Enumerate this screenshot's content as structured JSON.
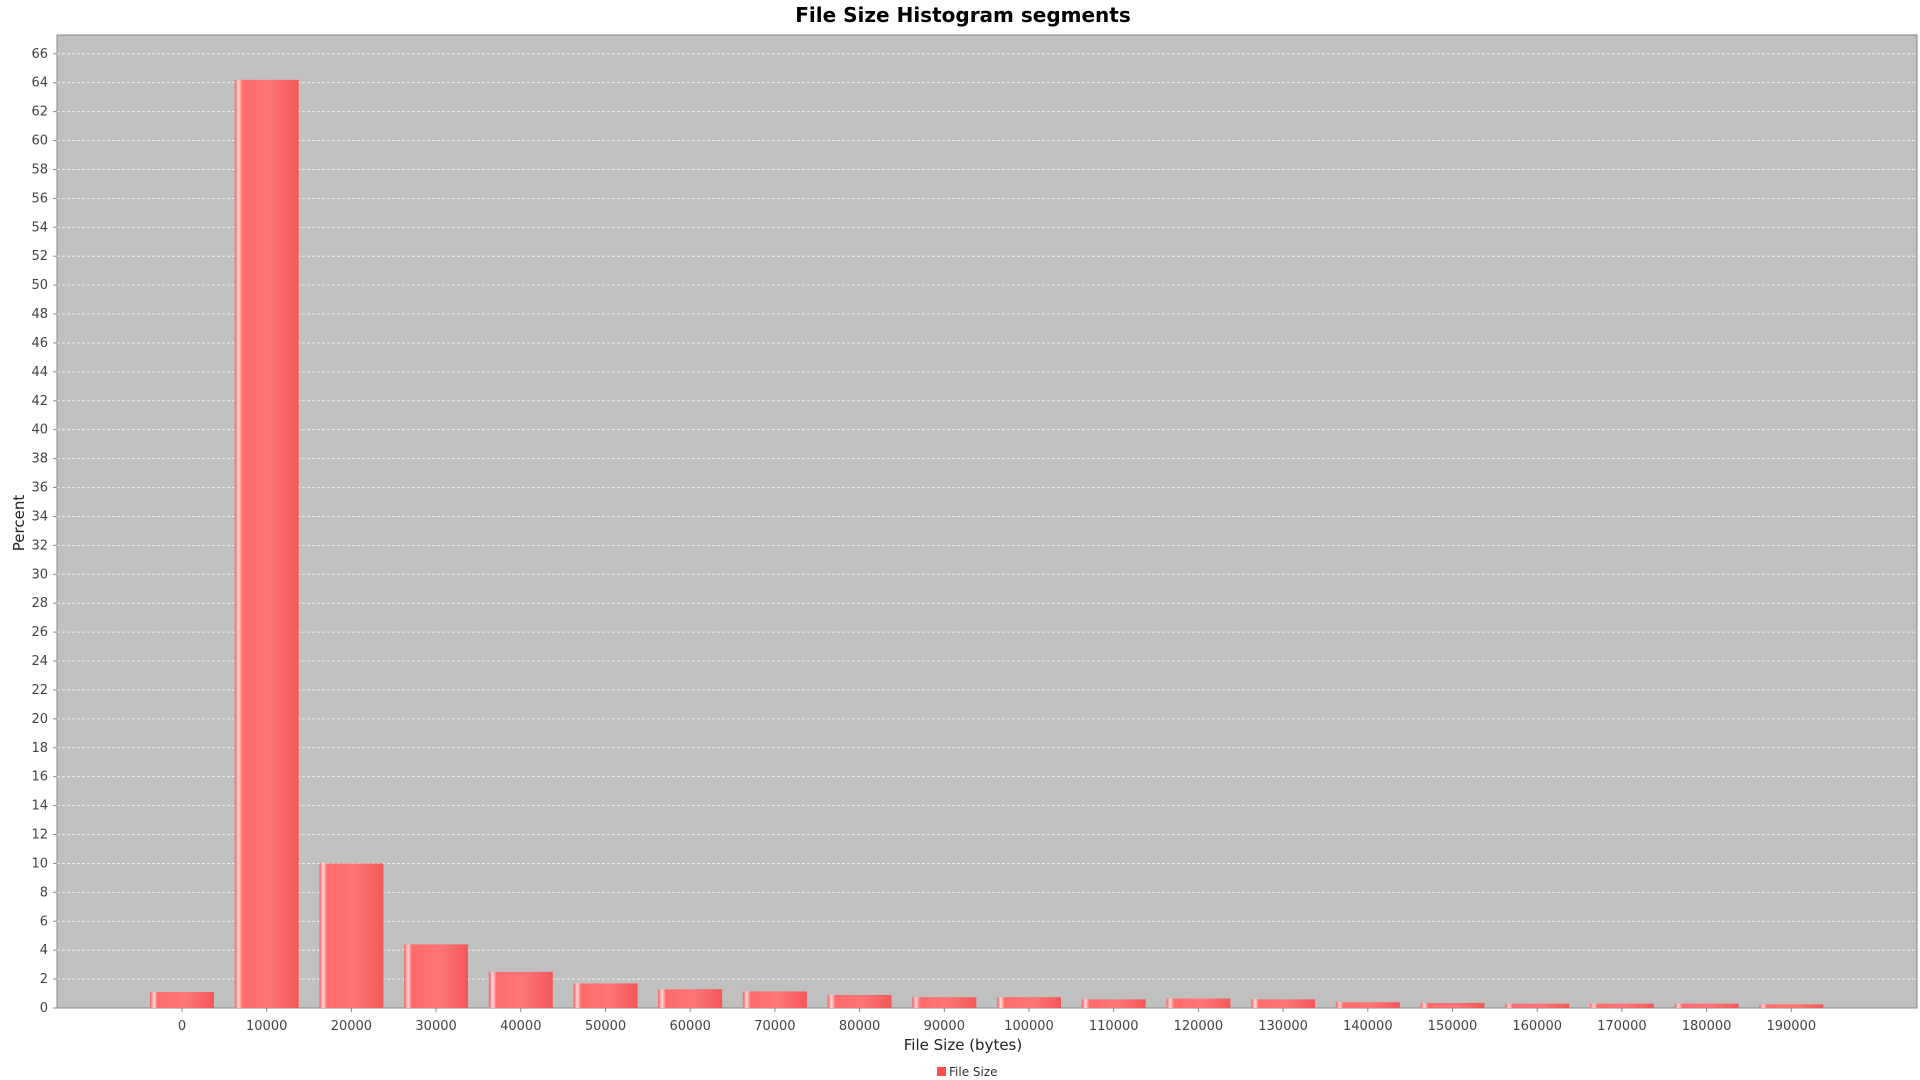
{
  "chart_data": {
    "type": "bar",
    "title": "File Size Histogram segments",
    "xlabel": "File Size (bytes)",
    "ylabel": "Percent",
    "categories": [
      "0",
      "10000",
      "20000",
      "30000",
      "40000",
      "50000",
      "60000",
      "70000",
      "80000",
      "90000",
      "100000",
      "110000",
      "120000",
      "130000",
      "140000",
      "150000",
      "160000",
      "170000",
      "180000",
      "190000"
    ],
    "series": [
      {
        "name": "File Size",
        "values": [
          1.1,
          64.2,
          10.0,
          4.4,
          2.5,
          1.7,
          1.3,
          1.15,
          0.9,
          0.75,
          0.75,
          0.6,
          0.65,
          0.6,
          0.4,
          0.35,
          0.3,
          0.3,
          0.3,
          0.25
        ]
      }
    ],
    "ylim": [
      0,
      67.3
    ],
    "yticks": [
      0,
      2,
      4,
      6,
      8,
      10,
      12,
      14,
      16,
      18,
      20,
      22,
      24,
      26,
      28,
      30,
      32,
      34,
      36,
      38,
      40,
      42,
      44,
      46,
      48,
      50,
      52,
      54,
      56,
      58,
      60,
      62,
      64,
      66
    ],
    "grid": true,
    "legend": "bottom-center",
    "colors": {
      "bar": "#ff6b6b",
      "bar_highlight": "#ffe0e0",
      "bar_shadow": "#e84848",
      "plot_background": "#c0c0c0",
      "gridline": "#ffffff",
      "legend_swatch": "#ff4d4d"
    }
  }
}
